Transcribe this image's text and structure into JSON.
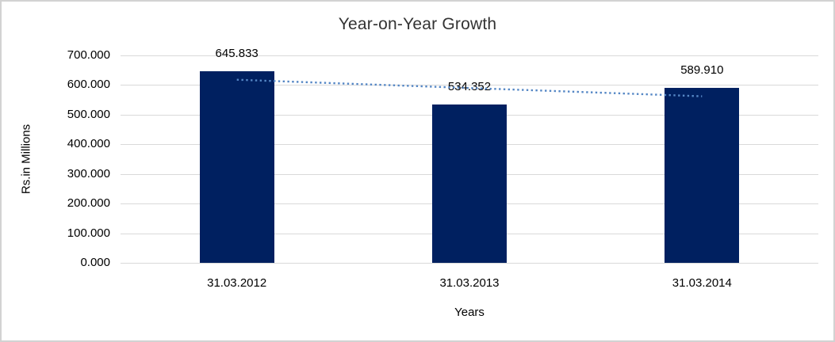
{
  "chart_data": {
    "type": "bar",
    "title": "Year-on-Year Growth",
    "xlabel": "Years",
    "ylabel": "Rs.in Millions",
    "categories": [
      "31.03.2012",
      "31.03.2013",
      "31.03.2014"
    ],
    "values": [
      645.833,
      534.352,
      589.91
    ],
    "value_labels": [
      "645.833",
      "534.352",
      "589.910"
    ],
    "ylim": [
      0,
      700
    ],
    "ytick_step": 100,
    "ytick_labels": [
      "0.000",
      "100.000",
      "200.000",
      "300.000",
      "400.000",
      "500.000",
      "600.000",
      "700.000"
    ],
    "grid": true,
    "legend": false,
    "trendline": {
      "type": "linear",
      "style": "dotted",
      "color": "#5587c5"
    },
    "colors": {
      "bar": "#002060",
      "gridline": "#d9d9d9",
      "border": "#d2d2d2",
      "title_text": "#333333",
      "label_text": "#000000"
    }
  }
}
